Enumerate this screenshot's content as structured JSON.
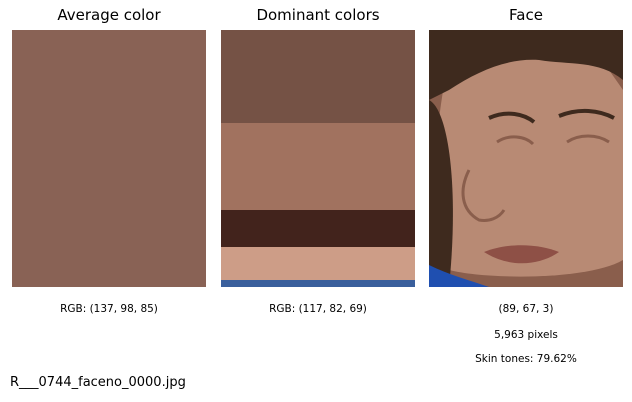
{
  "chart_data": {
    "type": "image-panels",
    "panels": [
      {
        "title": "Average color",
        "kind": "swatch",
        "color": "#896255",
        "caption": "RGB: (137, 98, 85)"
      },
      {
        "title": "Dominant colors",
        "kind": "stacked-swatches",
        "bands": [
          {
            "color": "#755245",
            "share": 0.36
          },
          {
            "color": "#a1725f",
            "share": 0.34
          },
          {
            "color": "#42231c",
            "share": 0.145
          },
          {
            "color": "#cd9d87",
            "share": 0.13
          },
          {
            "color": "#3a5f9c",
            "share": 0.025
          }
        ],
        "caption": "RGB: (117, 82, 69)"
      },
      {
        "title": "Face",
        "kind": "image",
        "captions": [
          "(89, 67, 3)",
          "5,963 pixels",
          "Skin tones: 79.62%"
        ]
      }
    ]
  },
  "footer": {
    "filename": "R___0744_faceno_0000.jpg"
  },
  "face_palette": {
    "hair": "#3e2a1e",
    "skin": "#b88a74",
    "skin_light": "#cfa38b",
    "shadow": "#8a5e4c",
    "lip": "#8e5046",
    "shirt": "#1f4fb0"
  }
}
